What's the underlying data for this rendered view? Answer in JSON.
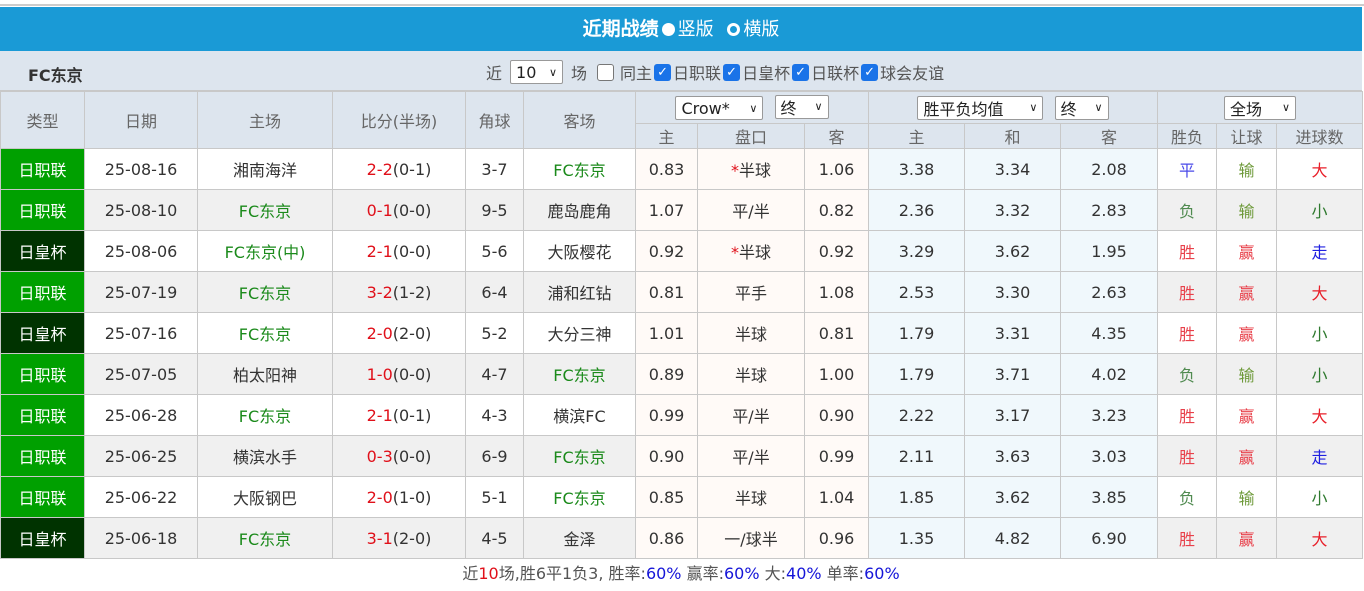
{
  "title": {
    "main": "近期战绩",
    "opt1": "竖版",
    "opt2": "横版",
    "selected": "竖版"
  },
  "filter": {
    "team": "FC东京",
    "near": "近",
    "count": "10",
    "unit": "场",
    "same_home": "同主",
    "same_home_checked": false,
    "leagues": [
      {
        "label": "日职联",
        "checked": true
      },
      {
        "label": "日皇杯",
        "checked": true
      },
      {
        "label": "日联杯",
        "checked": true
      },
      {
        "label": "球会友谊",
        "checked": true
      }
    ]
  },
  "header": {
    "type": "类型",
    "date": "日期",
    "home": "主场",
    "score": "比分(半场)",
    "corner": "角球",
    "away": "客场",
    "company": "Crow*",
    "ah_stage": "终",
    "euro_type": "胜平负均值",
    "euro_stage": "终",
    "period": "全场",
    "sub": [
      "主",
      "盘口",
      "客",
      "主",
      "和",
      "客",
      "胜负",
      "让球",
      "进球数"
    ]
  },
  "colors": {
    "league_jl": "#00a000",
    "league_hb": "#003300",
    "title_bg": "#1a9ad6"
  },
  "rows": [
    {
      "type": "日职联",
      "date": "25-08-16",
      "home": "湘南海洋",
      "home_fc": false,
      "ft": "2-2",
      "ht": "(0-1)",
      "corner": "3-7",
      "away": "FC东京",
      "away_fc": true,
      "ah_h": "0.83",
      "ah_line": "半球",
      "ah_star": true,
      "ah_a": "1.06",
      "e_h": "3.38",
      "e_d": "3.34",
      "e_a": "2.08",
      "res": "平",
      "ah": "输",
      "ou": "大"
    },
    {
      "type": "日职联",
      "date": "25-08-10",
      "home": "FC东京",
      "home_fc": true,
      "ft": "0-1",
      "ht": "(0-0)",
      "corner": "9-5",
      "away": "鹿岛鹿角",
      "away_fc": false,
      "ah_h": "1.07",
      "ah_line": "平/半",
      "ah_star": false,
      "ah_a": "0.82",
      "e_h": "2.36",
      "e_d": "3.32",
      "e_a": "2.83",
      "res": "负",
      "ah": "输",
      "ou": "小"
    },
    {
      "type": "日皇杯",
      "date": "25-08-06",
      "home": "FC东京(中)",
      "home_fc": true,
      "ft": "2-1",
      "ht": "(0-0)",
      "corner": "5-6",
      "away": "大阪樱花",
      "away_fc": false,
      "ah_h": "0.92",
      "ah_line": "半球",
      "ah_star": true,
      "ah_a": "0.92",
      "e_h": "3.29",
      "e_d": "3.62",
      "e_a": "1.95",
      "res": "胜",
      "ah": "赢",
      "ou": "走"
    },
    {
      "type": "日职联",
      "date": "25-07-19",
      "home": "FC东京",
      "home_fc": true,
      "ft": "3-2",
      "ht": "(1-2)",
      "corner": "6-4",
      "away": "浦和红钻",
      "away_fc": false,
      "ah_h": "0.81",
      "ah_line": "平手",
      "ah_star": false,
      "ah_a": "1.08",
      "e_h": "2.53",
      "e_d": "3.30",
      "e_a": "2.63",
      "res": "胜",
      "ah": "赢",
      "ou": "大"
    },
    {
      "type": "日皇杯",
      "date": "25-07-16",
      "home": "FC东京",
      "home_fc": true,
      "ft": "2-0",
      "ht": "(2-0)",
      "corner": "5-2",
      "away": "大分三神",
      "away_fc": false,
      "ah_h": "1.01",
      "ah_line": "半球",
      "ah_star": false,
      "ah_a": "0.81",
      "e_h": "1.79",
      "e_d": "3.31",
      "e_a": "4.35",
      "res": "胜",
      "ah": "赢",
      "ou": "小"
    },
    {
      "type": "日职联",
      "date": "25-07-05",
      "home": "柏太阳神",
      "home_fc": false,
      "ft": "1-0",
      "ht": "(0-0)",
      "corner": "4-7",
      "away": "FC东京",
      "away_fc": true,
      "ah_h": "0.89",
      "ah_line": "半球",
      "ah_star": false,
      "ah_a": "1.00",
      "e_h": "1.79",
      "e_d": "3.71",
      "e_a": "4.02",
      "res": "负",
      "ah": "输",
      "ou": "小"
    },
    {
      "type": "日职联",
      "date": "25-06-28",
      "home": "FC东京",
      "home_fc": true,
      "ft": "2-1",
      "ht": "(0-1)",
      "corner": "4-3",
      "away": "横滨FC",
      "away_fc": false,
      "ah_h": "0.99",
      "ah_line": "平/半",
      "ah_star": false,
      "ah_a": "0.90",
      "e_h": "2.22",
      "e_d": "3.17",
      "e_a": "3.23",
      "res": "胜",
      "ah": "赢",
      "ou": "大"
    },
    {
      "type": "日职联",
      "date": "25-06-25",
      "home": "横滨水手",
      "home_fc": false,
      "ft": "0-3",
      "ht": "(0-0)",
      "corner": "6-9",
      "away": "FC东京",
      "away_fc": true,
      "ah_h": "0.90",
      "ah_line": "平/半",
      "ah_star": false,
      "ah_a": "0.99",
      "e_h": "2.11",
      "e_d": "3.63",
      "e_a": "3.03",
      "res": "胜",
      "ah": "赢",
      "ou": "走"
    },
    {
      "type": "日职联",
      "date": "25-06-22",
      "home": "大阪钢巴",
      "home_fc": false,
      "ft": "2-0",
      "ht": "(1-0)",
      "corner": "5-1",
      "away": "FC东京",
      "away_fc": true,
      "ah_h": "0.85",
      "ah_line": "半球",
      "ah_star": false,
      "ah_a": "1.04",
      "e_h": "1.85",
      "e_d": "3.62",
      "e_a": "3.85",
      "res": "负",
      "ah": "输",
      "ou": "小"
    },
    {
      "type": "日皇杯",
      "date": "25-06-18",
      "home": "FC东京",
      "home_fc": true,
      "ft": "3-1",
      "ht": "(2-0)",
      "corner": "4-5",
      "away": "金泽",
      "away_fc": false,
      "ah_h": "0.86",
      "ah_line": "一/球半",
      "ah_star": false,
      "ah_a": "0.96",
      "e_h": "1.35",
      "e_d": "4.82",
      "e_a": "6.90",
      "res": "胜",
      "ah": "赢",
      "ou": "大"
    }
  ],
  "summary": {
    "p1": "近",
    "n": "10",
    "p2": "场,胜6平1负3, 胜率:",
    "win_rate": "60%",
    "p3": " 赢率:",
    "ah_rate": "60%",
    "p4": " 大:",
    "big_rate": "40%",
    "p5": " 单率:",
    "odd_rate": "60%"
  }
}
